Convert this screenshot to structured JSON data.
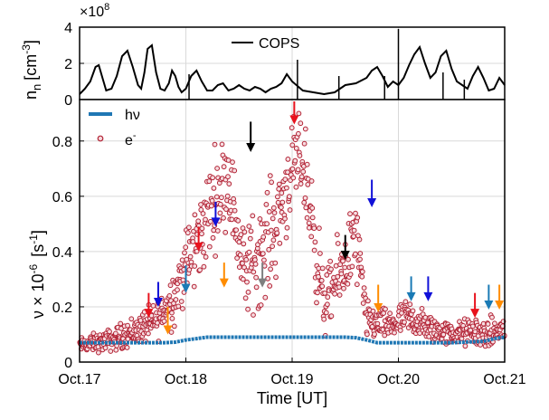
{
  "figure": {
    "top_panel": {
      "ylabel_main": "n",
      "ylabel_sub": "n",
      "ylabel_unit": "[cm",
      "ylabel_exp": "-3",
      "ylabel_close": "]",
      "multiplier_base": "×10",
      "multiplier_exp": "8",
      "legend": {
        "cops": "COPS"
      }
    },
    "bottom_panel": {
      "ylabel_nu": "ν × 10",
      "ylabel_exp": "-6",
      "ylabel_unit": "[s",
      "ylabel_unit_exp": "-1",
      "ylabel_close": "]",
      "legend": {
        "hv": "hν",
        "e_base": "e",
        "e_sup": "-"
      },
      "xlabel": "Time [UT]"
    }
  },
  "chart_data": [
    {
      "type": "line",
      "panel": "top",
      "ylim": [
        0,
        4
      ],
      "yticks": [
        0,
        2,
        4
      ],
      "ytick_labels": [
        "0",
        "2",
        "4"
      ],
      "y_multiplier": "1e8",
      "xlim": [
        0,
        4
      ],
      "grid": true,
      "legend_position": "top-center",
      "series": [
        {
          "name": "COPS",
          "color": "#000000",
          "x": [
            0.0,
            0.05,
            0.1,
            0.15,
            0.18,
            0.21,
            0.25,
            0.3,
            0.35,
            0.4,
            0.45,
            0.5,
            0.55,
            0.58,
            0.61,
            0.64,
            0.68,
            0.72,
            0.76,
            0.8,
            0.84,
            0.87,
            0.9,
            0.93,
            0.96,
            1.0,
            1.05,
            1.1,
            1.15,
            1.2,
            1.25,
            1.3,
            1.35,
            1.4,
            1.45,
            1.5,
            1.55,
            1.6,
            1.65,
            1.7,
            1.75,
            1.8,
            1.85,
            1.9,
            1.95,
            2.0,
            2.1,
            2.2,
            2.3,
            2.4,
            2.5,
            2.6,
            2.7,
            2.75,
            2.8,
            2.85,
            2.9,
            2.95,
            3.0,
            3.05,
            3.1,
            3.15,
            3.2,
            3.25,
            3.3,
            3.35,
            3.4,
            3.45,
            3.5,
            3.55,
            3.6,
            3.65,
            3.7,
            3.75,
            3.8,
            3.85,
            3.9,
            3.95,
            4.0
          ],
          "y": [
            0.3,
            0.6,
            1.0,
            1.8,
            1.9,
            1.3,
            0.5,
            0.6,
            1.3,
            2.4,
            2.7,
            1.8,
            0.8,
            0.6,
            1.5,
            2.8,
            3.0,
            1.5,
            0.6,
            0.5,
            0.9,
            1.6,
            1.3,
            0.7,
            0.4,
            0.6,
            1.3,
            1.6,
            1.0,
            0.5,
            0.5,
            0.8,
            0.9,
            0.5,
            0.6,
            0.8,
            0.6,
            0.5,
            0.7,
            0.6,
            0.4,
            0.6,
            0.7,
            0.9,
            1.4,
            1.0,
            0.5,
            0.4,
            0.3,
            0.4,
            0.8,
            0.9,
            1.2,
            1.6,
            1.8,
            1.3,
            0.7,
            1.0,
            0.8,
            1.2,
            1.9,
            2.5,
            2.9,
            2.0,
            1.2,
            1.5,
            2.4,
            2.7,
            1.7,
            1.0,
            0.8,
            0.6,
            1.3,
            1.8,
            1.2,
            0.5,
            0.6,
            1.2,
            0.8
          ],
          "spikes": [
            [
              1.03,
              1.4
            ],
            [
              2.05,
              2.2
            ],
            [
              2.44,
              1.3
            ],
            [
              2.87,
              1.3
            ],
            [
              3.0,
              3.9
            ],
            [
              3.42,
              1.5
            ],
            [
              3.62,
              1.1
            ]
          ]
        }
      ]
    },
    {
      "type": "scatter",
      "panel": "bottom",
      "ylim": [
        0,
        0.95
      ],
      "yticks": [
        0,
        0.2,
        0.4,
        0.6,
        0.8
      ],
      "ytick_labels": [
        "0",
        "0.2",
        "0.4",
        "0.6",
        "0.8"
      ],
      "xlim": [
        0,
        4
      ],
      "xticks": [
        0,
        1,
        2,
        3,
        4
      ],
      "xtick_labels": [
        "Oct.17",
        "Oct.18",
        "Oct.19",
        "Oct.20",
        "Oct.21"
      ],
      "grid": true,
      "legend_position": "top-left",
      "series": [
        {
          "name": "hν",
          "kind": "line",
          "color": "#1f77b4",
          "x": [
            0.0,
            0.8,
            0.9,
            1.0,
            1.1,
            1.2,
            1.5,
            2.0,
            2.5,
            2.6,
            2.7,
            2.8,
            3.0,
            3.5,
            3.8,
            3.9,
            4.0
          ],
          "y": [
            0.07,
            0.07,
            0.072,
            0.08,
            0.085,
            0.09,
            0.09,
            0.09,
            0.09,
            0.088,
            0.08,
            0.07,
            0.07,
            0.07,
            0.075,
            0.085,
            0.09
          ]
        },
        {
          "name": "e-",
          "kind": "scatter",
          "color": "#b22234",
          "profile_x": [
            0.0,
            0.3,
            0.5,
            0.7,
            0.9,
            1.0,
            1.1,
            1.25,
            1.4,
            1.55,
            1.7,
            1.85,
            2.0,
            2.1,
            2.2,
            2.3,
            2.45,
            2.6,
            2.7,
            2.9,
            3.1,
            3.3,
            3.5,
            3.7,
            3.85,
            4.0
          ],
          "profile_mean": [
            0.06,
            0.08,
            0.11,
            0.14,
            0.25,
            0.35,
            0.42,
            0.58,
            0.68,
            0.32,
            0.4,
            0.5,
            0.7,
            0.74,
            0.48,
            0.2,
            0.32,
            0.45,
            0.15,
            0.13,
            0.16,
            0.12,
            0.1,
            0.11,
            0.1,
            0.12
          ],
          "profile_spread": [
            0.02,
            0.03,
            0.04,
            0.05,
            0.08,
            0.1,
            0.12,
            0.13,
            0.12,
            0.12,
            0.14,
            0.14,
            0.12,
            0.12,
            0.15,
            0.08,
            0.1,
            0.12,
            0.05,
            0.04,
            0.05,
            0.04,
            0.03,
            0.04,
            0.04,
            0.04
          ],
          "count": 900
        }
      ],
      "arrows": [
        {
          "x": 0.65,
          "y_top": 0.25,
          "y_tip": 0.16,
          "color": "#e8121d"
        },
        {
          "x": 0.74,
          "y_top": 0.29,
          "y_tip": 0.2,
          "color": "#1010d8"
        },
        {
          "x": 0.83,
          "y_top": 0.2,
          "y_tip": 0.1,
          "color": "#ff8c00"
        },
        {
          "x": 1.0,
          "y_top": 0.35,
          "y_tip": 0.25,
          "color": "#1a7ab5"
        },
        {
          "x": 1.12,
          "y_top": 0.49,
          "y_tip": 0.4,
          "color": "#e8121d"
        },
        {
          "x": 1.28,
          "y_top": 0.58,
          "y_tip": 0.49,
          "color": "#1010d8"
        },
        {
          "x": 1.36,
          "y_top": 0.36,
          "y_tip": 0.27,
          "color": "#ff8c00"
        },
        {
          "x": 1.61,
          "y_top": 0.87,
          "y_tip": 0.76,
          "color": "#000000"
        },
        {
          "x": 1.72,
          "y_top": 0.36,
          "y_tip": 0.27,
          "color": "#7f7f7f"
        },
        {
          "x": 2.02,
          "y_top": 0.96,
          "y_tip": 0.86,
          "color": "#e8121d"
        },
        {
          "x": 2.5,
          "y_top": 0.46,
          "y_tip": 0.37,
          "color": "#000000"
        },
        {
          "x": 2.75,
          "y_top": 0.66,
          "y_tip": 0.56,
          "color": "#1010d8"
        },
        {
          "x": 2.81,
          "y_top": 0.28,
          "y_tip": 0.18,
          "color": "#ff8c00"
        },
        {
          "x": 3.12,
          "y_top": 0.31,
          "y_tip": 0.22,
          "color": "#1a7ab5"
        },
        {
          "x": 3.28,
          "y_top": 0.31,
          "y_tip": 0.22,
          "color": "#1010d8"
        },
        {
          "x": 3.72,
          "y_top": 0.25,
          "y_tip": 0.16,
          "color": "#e8121d"
        },
        {
          "x": 3.85,
          "y_top": 0.28,
          "y_tip": 0.19,
          "color": "#1a7ab5"
        },
        {
          "x": 3.95,
          "y_top": 0.28,
          "y_tip": 0.19,
          "color": "#ff8c00"
        }
      ]
    }
  ]
}
